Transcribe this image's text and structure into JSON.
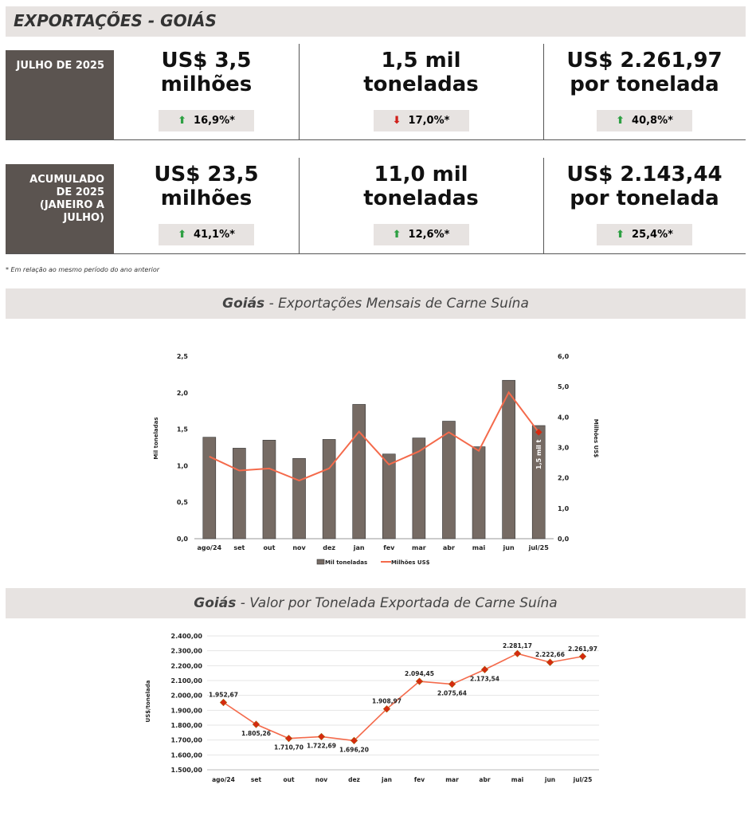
{
  "header": {
    "title": "EXPORTAÇÕES - GOIÁS"
  },
  "rows": [
    {
      "label": "JULHO DE 2025",
      "cells": [
        {
          "value": "US$ 3,5 milhões",
          "change": "16,9%*",
          "direction": "up"
        },
        {
          "value": "1,5 mil toneladas",
          "change": "17,0%*",
          "direction": "down"
        },
        {
          "value": "US$ 2.261,97 por tonelada",
          "change": "40,8%*",
          "direction": "up"
        }
      ]
    },
    {
      "label": "ACUMULADO DE 2025 (JANEIRO A JULHO)",
      "cells": [
        {
          "value": "US$ 23,5 milhões",
          "change": "41,1%*",
          "direction": "up"
        },
        {
          "value": "11,0 mil toneladas",
          "change": "12,6%*",
          "direction": "up"
        },
        {
          "value": "US$ 2.143,44 por tonelada",
          "change": "25,4%*",
          "direction": "up"
        }
      ]
    }
  ],
  "footnote": "* Em relação ao mesmo período do ano anterior",
  "sections": [
    {
      "bold": "Goiás",
      "rest": " - Exportações Mensais de Carne Suína"
    },
    {
      "bold": "Goiás",
      "rest": " - Valor por Tonelada Exportada de Carne Suína"
    }
  ],
  "colors": {
    "bar": "#766b64",
    "line": "#f46a4b",
    "marker": "#d62a10",
    "up": "#2ea043",
    "down": "#d0201a"
  },
  "chart_data": [
    {
      "type": "bar",
      "categories": [
        "ago/24",
        "set",
        "out",
        "nov",
        "dez",
        "jan",
        "fev",
        "mar",
        "abr",
        "mai",
        "jun",
        "jul/25"
      ],
      "series": [
        {
          "name": "Mil toneladas",
          "axis": "left",
          "values": [
            1.39,
            1.24,
            1.35,
            1.1,
            1.36,
            1.84,
            1.16,
            1.38,
            1.61,
            1.26,
            2.17,
            1.55
          ]
        },
        {
          "name": "Milhões US$",
          "axis": "right",
          "type": "line",
          "values": [
            2.7,
            2.24,
            2.31,
            1.91,
            2.31,
            3.52,
            2.44,
            2.87,
            3.5,
            2.89,
            4.81,
            3.5
          ]
        }
      ],
      "ylabel": "Mil toneladas",
      "y2label": "Milhões US$",
      "ylim": [
        0,
        2.5
      ],
      "y2lim": [
        0,
        6
      ],
      "yticks": [
        "0,0",
        "0,5",
        "1,0",
        "1,5",
        "2,0",
        "2,5"
      ],
      "y2ticks": [
        "0,0",
        "1,0",
        "2,0",
        "3,0",
        "4,0",
        "5,0",
        "6,0"
      ],
      "annotation": "1,5 mil t",
      "legend": "bottom"
    },
    {
      "type": "line",
      "categories": [
        "ago/24",
        "set",
        "out",
        "nov",
        "dez",
        "jan",
        "fev",
        "mar",
        "abr",
        "mai",
        "jun",
        "jul/25"
      ],
      "values": [
        1952.67,
        1805.26,
        1710.7,
        1722.69,
        1696.2,
        1908.97,
        2094.45,
        2075.64,
        2173.54,
        2281.17,
        2222.66,
        2261.97
      ],
      "labels": [
        "1.952,67",
        "1.805,26",
        "1.710,70",
        "1.722,69",
        "1.696,20",
        "1.908,97",
        "2.094,45",
        "2.075,64",
        "2.173,54",
        "2.281,17",
        "2.222,66",
        "2.261,97"
      ],
      "ylabel": "US$/tonelada",
      "ylim": [
        1500,
        2400
      ],
      "yticks": [
        "1.500,00",
        "1.600,00",
        "1.700,00",
        "1.800,00",
        "1.900,00",
        "2.000,00",
        "2.100,00",
        "2.200,00",
        "2.300,00",
        "2.400,00"
      ],
      "grid": true
    }
  ]
}
